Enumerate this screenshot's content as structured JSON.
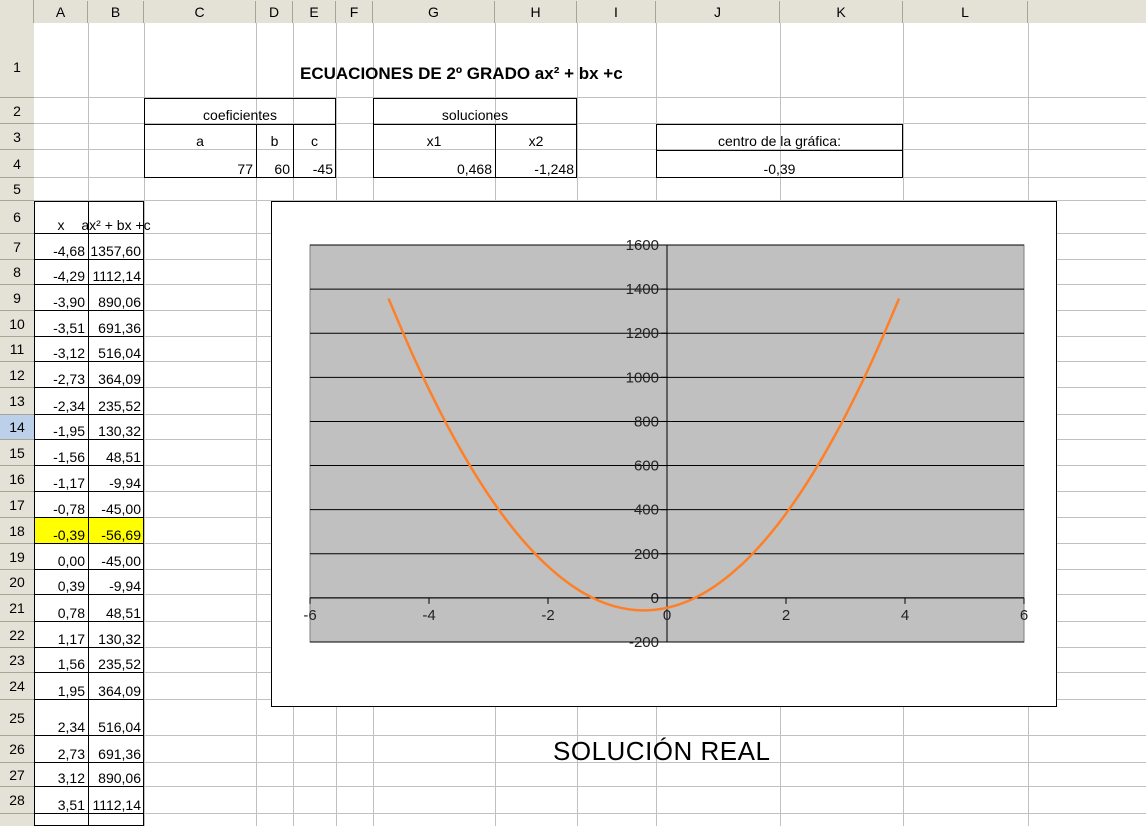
{
  "columns": [
    "A",
    "B",
    "C",
    "D",
    "E",
    "F",
    "G",
    "H",
    "I",
    "J",
    "K",
    "L"
  ],
  "rows": [
    "1",
    "2",
    "3",
    "4",
    "5",
    "6",
    "7",
    "8",
    "9",
    "10",
    "11",
    "12",
    "13",
    "14",
    "15",
    "16",
    "17",
    "18",
    "19",
    "20",
    "21",
    "22",
    "23",
    "24",
    "25",
    "26",
    "27",
    "28"
  ],
  "selected_row": "14",
  "title": "ECUACIONES DE 2º GRADO  ax² + bx +c",
  "coeficientes": {
    "label": "coeficientes",
    "names": [
      "a",
      "b",
      "c"
    ],
    "values": [
      "77",
      "60",
      "-45"
    ]
  },
  "soluciones": {
    "label": "soluciones",
    "names": [
      "x1",
      "x2"
    ],
    "values": [
      "0,468",
      "-1,248"
    ]
  },
  "centro": {
    "label": "centro de la gráfica:",
    "value": "-0,39"
  },
  "table": {
    "headers": [
      "x",
      "ax² + bx +c"
    ],
    "rows": [
      [
        "-4,68",
        "1357,60"
      ],
      [
        "-4,29",
        "1112,14"
      ],
      [
        "-3,90",
        "890,06"
      ],
      [
        "-3,51",
        "691,36"
      ],
      [
        "-3,12",
        "516,04"
      ],
      [
        "-2,73",
        "364,09"
      ],
      [
        "-2,34",
        "235,52"
      ],
      [
        "-1,95",
        "130,32"
      ],
      [
        "-1,56",
        "48,51"
      ],
      [
        "-1,17",
        "-9,94"
      ],
      [
        "-0,78",
        "-45,00"
      ],
      [
        "-0,39",
        "-56,69"
      ],
      [
        "0,00",
        "-45,00"
      ],
      [
        "0,39",
        "-9,94"
      ],
      [
        "0,78",
        "48,51"
      ],
      [
        "1,17",
        "130,32"
      ],
      [
        "1,56",
        "235,52"
      ],
      [
        "1,95",
        "364,09"
      ],
      [
        "2,34",
        "516,04"
      ],
      [
        "2,73",
        "691,36"
      ],
      [
        "3,12",
        "890,06"
      ],
      [
        "3,51",
        "1112,14"
      ]
    ],
    "highlight_index": 11
  },
  "solucion_text": "SOLUCIÓN REAL",
  "colors": {
    "highlight": "#ffff00",
    "plot_area": "#c0c0c0",
    "curve": "#ff7f27",
    "header_bg": "#e4e1d7",
    "selected_header": "#bcd0ea"
  },
  "chart_data": {
    "type": "line",
    "x": [
      -4.68,
      -4.29,
      -3.9,
      -3.51,
      -3.12,
      -2.73,
      -2.34,
      -1.95,
      -1.56,
      -1.17,
      -0.78,
      -0.39,
      0,
      0.39,
      0.78,
      1.17,
      1.56,
      1.95,
      2.34,
      2.73,
      3.12,
      3.51,
      3.9
    ],
    "series": [
      {
        "values": [
          1357.6,
          1112.14,
          890.06,
          691.36,
          516.04,
          364.09,
          235.52,
          130.32,
          48.51,
          -9.94,
          -45,
          -56.69,
          -45,
          -9.94,
          48.51,
          130.32,
          235.52,
          364.09,
          516.04,
          691.36,
          890.06,
          1112.14,
          1357.6
        ]
      }
    ],
    "xlim": [
      -6,
      6
    ],
    "ylim": [
      -200,
      1600
    ],
    "xticks": [
      "-6",
      "-4",
      "-2",
      "0",
      "2",
      "4",
      "6"
    ],
    "yticks": [
      "-200",
      "0",
      "200",
      "400",
      "600",
      "800",
      "1000",
      "1200",
      "1400",
      "1600"
    ],
    "grid": "horizontal",
    "legend": "none"
  }
}
